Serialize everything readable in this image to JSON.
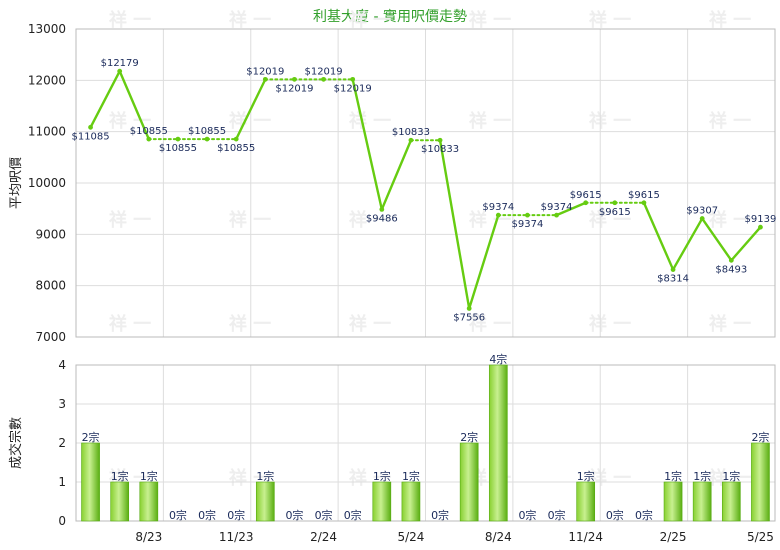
{
  "chart_data": [
    {
      "type": "line",
      "title": "利基大廈 - 實用呎價走勢",
      "ylabel": "平均呎價",
      "ylim": [
        7000,
        13000
      ],
      "yticks": [
        7000,
        8000,
        9000,
        10000,
        11000,
        12000,
        13000
      ],
      "grid": true,
      "series": [
        {
          "values": [
            11085,
            12179,
            10855,
            10855,
            10855,
            10855,
            12019,
            12019,
            12019,
            12019,
            9486,
            10833,
            10833,
            7556,
            9374,
            9374,
            9374,
            9615,
            9615,
            9615,
            8314,
            9307,
            8493,
            9139
          ],
          "segment_style": [
            "solid",
            "solid",
            "dotted",
            "dotted",
            "dotted",
            "solid",
            "dotted",
            "dotted",
            "dotted",
            "solid",
            "solid",
            "dotted",
            "solid",
            "solid",
            "dotted",
            "dotted",
            "solid",
            "dotted",
            "dotted",
            "solid",
            "solid",
            "solid",
            "solid"
          ],
          "labels": [
            "$11085",
            "$12179",
            "$10855",
            "$10855",
            "$10855",
            "$10855",
            "$12019",
            "$12019",
            "$12019",
            "$12019",
            "$9486",
            "$10833",
            "$10833",
            "$7556",
            "$9374",
            "$9374",
            "$9374",
            "$9615",
            "$9615",
            "$9615",
            "$8314",
            "$9307",
            "$8493",
            "$9139"
          ],
          "label_pos": [
            "below",
            "above",
            "above",
            "below",
            "above",
            "below",
            "above",
            "below",
            "above",
            "below",
            "below",
            "above",
            "below",
            "below",
            "above",
            "below",
            "above",
            "above",
            "below",
            "above",
            "below",
            "above",
            "below",
            "above"
          ],
          "color": "#66cc11"
        }
      ]
    },
    {
      "type": "bar",
      "ylabel": "成交宗數",
      "ylim": [
        0,
        4
      ],
      "yticks": [
        0,
        1,
        2,
        3,
        4
      ],
      "values": [
        2,
        1,
        1,
        0,
        0,
        0,
        1,
        0,
        0,
        0,
        1,
        1,
        0,
        2,
        4,
        0,
        0,
        1,
        0,
        0,
        1,
        1,
        1,
        2
      ],
      "labels": [
        "2宗",
        "1宗",
        "1宗",
        "0宗",
        "0宗",
        "0宗",
        "1宗",
        "0宗",
        "0宗",
        "0宗",
        "1宗",
        "1宗",
        "0宗",
        "2宗",
        "4宗",
        "0宗",
        "0宗",
        "1宗",
        "0宗",
        "0宗",
        "1宗",
        "1宗",
        "1宗",
        "2宗"
      ],
      "x_tick_labels": [
        {
          "index": 2,
          "label": "8/23"
        },
        {
          "index": 5,
          "label": "11/23"
        },
        {
          "index": 8,
          "label": "2/24"
        },
        {
          "index": 11,
          "label": "5/24"
        },
        {
          "index": 14,
          "label": "8/24"
        },
        {
          "index": 17,
          "label": "11/24"
        },
        {
          "index": 20,
          "label": "2/25"
        },
        {
          "index": 23,
          "label": "5/25"
        }
      ],
      "color": "#66cc11"
    }
  ],
  "watermark": "祥 一",
  "colors": {
    "line": "#66cc11",
    "bar_light": "#a8e060",
    "bar_dark": "#55aa11",
    "grid": "#dddddd",
    "title": "#33a02c"
  }
}
